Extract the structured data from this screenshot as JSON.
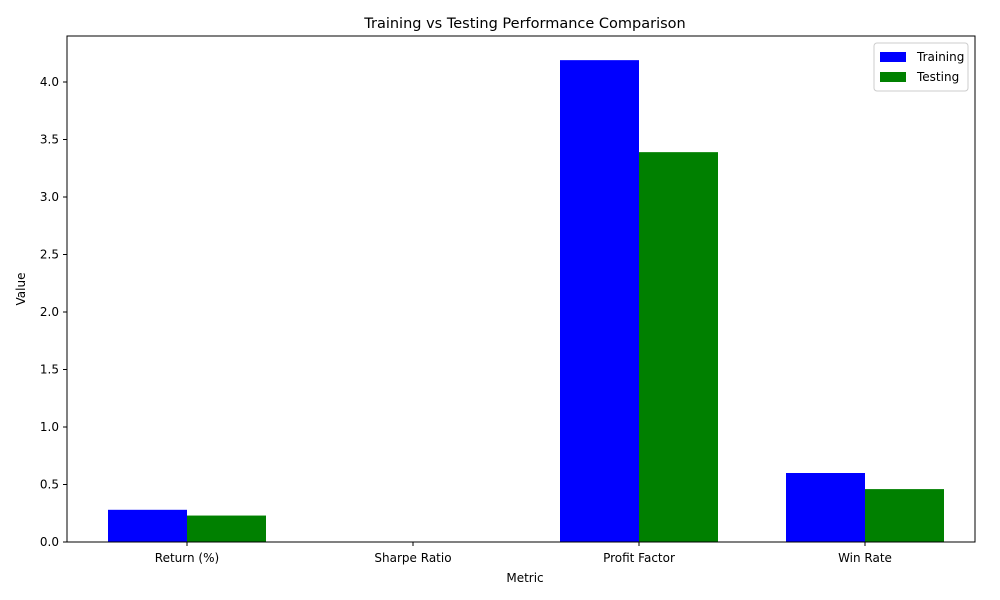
{
  "chart_data": {
    "type": "bar",
    "title": "Training vs Testing Performance Comparison",
    "xlabel": "Metric",
    "ylabel": "Value",
    "categories": [
      "Return (%)",
      "Sharpe Ratio",
      "Profit Factor",
      "Win Rate"
    ],
    "series": [
      {
        "name": "Training",
        "color": "#0000ff",
        "values": [
          0.28,
          0.0,
          4.19,
          0.6
        ]
      },
      {
        "name": "Testing",
        "color": "#008000",
        "values": [
          0.23,
          0.0,
          3.39,
          0.46
        ]
      }
    ],
    "yticks": [
      "0.0",
      "0.5",
      "1.0",
      "1.5",
      "2.0",
      "2.5",
      "3.0",
      "3.5",
      "4.0"
    ],
    "ylim": [
      0,
      4.4
    ],
    "grid": false,
    "legend_position": "top-right"
  }
}
